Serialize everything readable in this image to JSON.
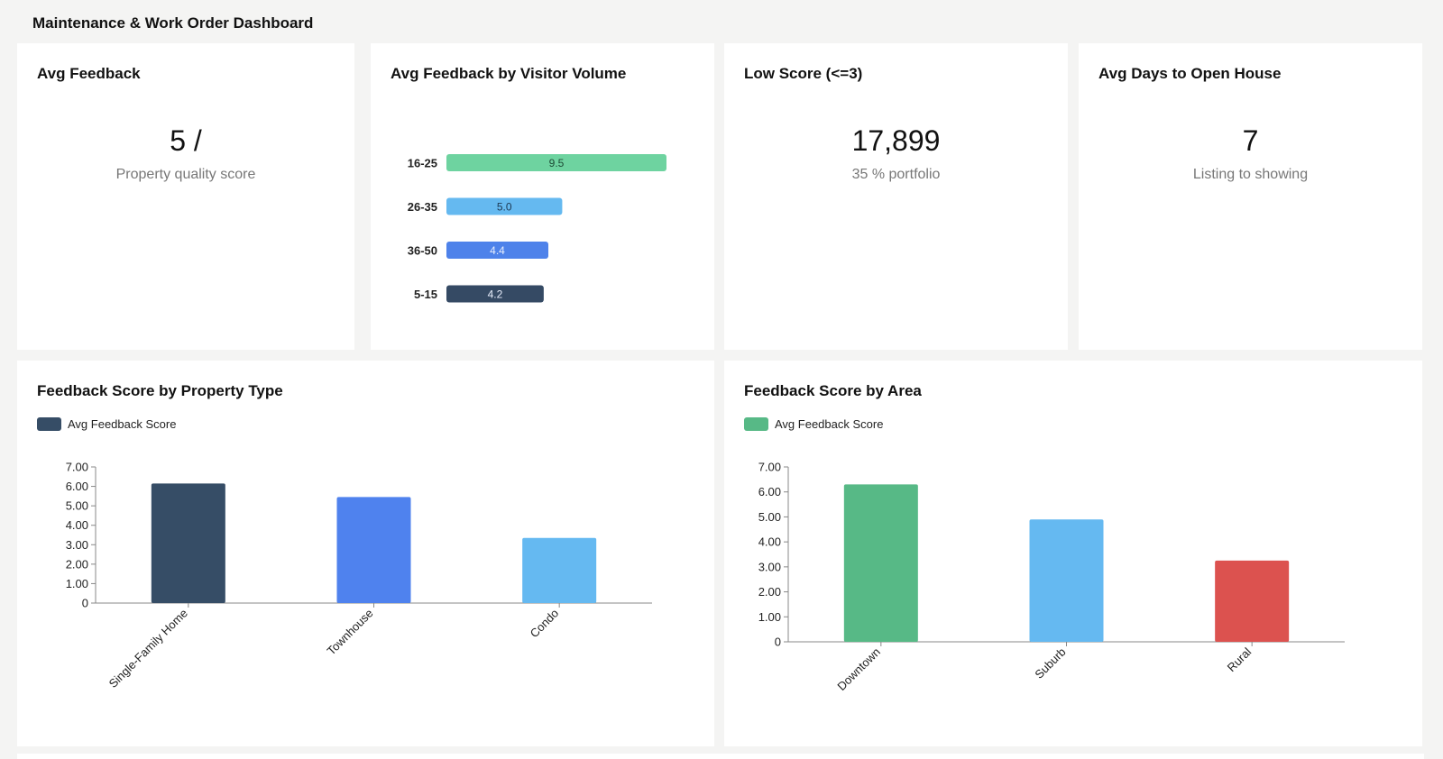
{
  "page": {
    "title": "Maintenance & Work Order Dashboard"
  },
  "kpis": {
    "avg_feedback": {
      "title": "Avg Feedback",
      "value": "5 /",
      "subtitle": "Property quality score"
    },
    "low_score": {
      "title": "Low Score (<=3)",
      "value": "17,899",
      "subtitle": "35 % portfolio"
    },
    "avg_days": {
      "title": "Avg Days to Open House",
      "value": "7",
      "subtitle": "Listing to showing"
    }
  },
  "visitor_volume": {
    "title": "Avg Feedback by Visitor Volume"
  },
  "property_type": {
    "title": "Feedback Score by Property Type",
    "legend_label": "Avg Feedback Score",
    "legend_color": "#364d66"
  },
  "area": {
    "title": "Feedback Score by Area",
    "legend_label": "Avg Feedback Score",
    "legend_color": "#57b986"
  },
  "chart_data": [
    {
      "type": "bar",
      "orientation": "horizontal",
      "title": "Avg Feedback by Visitor Volume",
      "categories": [
        "16-25",
        "26-35",
        "36-50",
        "5-15"
      ],
      "values": [
        9.5,
        5.0,
        4.4,
        4.2
      ],
      "labels": [
        "9.5",
        "5.0",
        "4.4",
        "4.2"
      ],
      "colors": [
        "#6ed3a0",
        "#65b9f0",
        "#4e82ea",
        "#354a64"
      ],
      "label_colors": [
        "#1d4a35",
        "#1d3a55",
        "#e8eefc",
        "#e8eefc"
      ]
    },
    {
      "type": "bar",
      "title": "Feedback Score by Property Type",
      "categories": [
        "Single-Family Home",
        "Townhouse",
        "Condo"
      ],
      "series": [
        {
          "name": "Avg Feedback Score",
          "values": [
            6.15,
            5.45,
            3.35
          ]
        }
      ],
      "colors": [
        "#364d66",
        "#4f82ee",
        "#65b9f1"
      ],
      "ylim": [
        0,
        7
      ],
      "yticks": [
        "0",
        "1.00",
        "2.00",
        "3.00",
        "4.00",
        "5.00",
        "6.00",
        "7.00"
      ],
      "grid": false
    },
    {
      "type": "bar",
      "title": "Feedback Score by Area",
      "categories": [
        "Downtown",
        "Suburb",
        "Rural"
      ],
      "series": [
        {
          "name": "Avg Feedback Score",
          "values": [
            6.3,
            4.9,
            3.25
          ]
        }
      ],
      "colors": [
        "#57b986",
        "#65b9f1",
        "#dc524f"
      ],
      "ylim": [
        0,
        7
      ],
      "yticks": [
        "0",
        "1.00",
        "2.00",
        "3.00",
        "4.00",
        "5.00",
        "6.00",
        "7.00"
      ],
      "grid": false
    }
  ]
}
